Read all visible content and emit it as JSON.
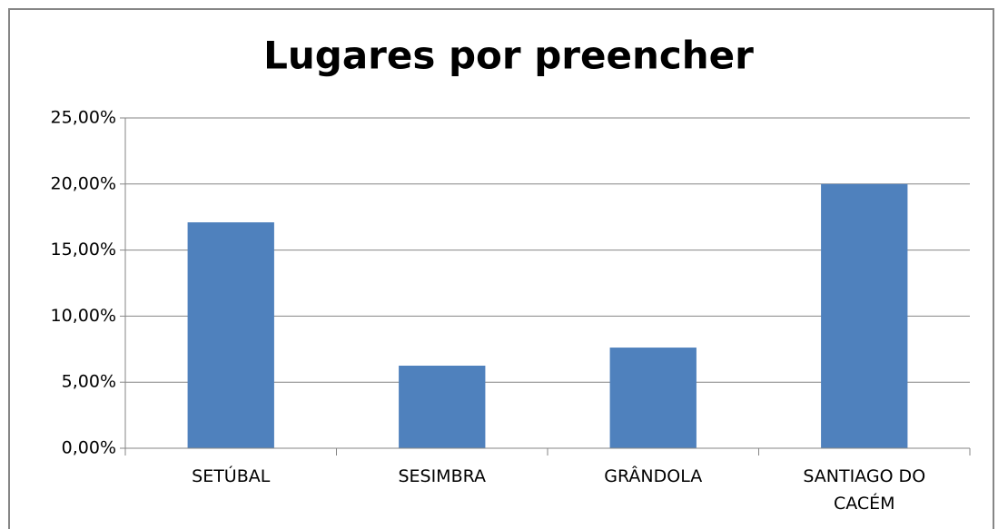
{
  "chart_data": {
    "type": "bar",
    "title": "Lugares por preencher",
    "categories": [
      "SETÚBAL",
      "SESIMBRA",
      "GRÂNDOLA",
      "SANTIAGO DO CACÉM"
    ],
    "values": [
      17.1,
      6.25,
      7.62,
      20
    ],
    "color": "#4f81bd",
    "ylim": [
      0,
      25
    ],
    "yticks": [
      {
        "value": 0,
        "label": "0,00%"
      },
      {
        "value": 5,
        "label": "5,00%"
      },
      {
        "value": 10,
        "label": "10,00%"
      },
      {
        "value": 15,
        "label": "15,00%"
      },
      {
        "value": 20,
        "label": "20,00%"
      },
      {
        "value": 25,
        "label": "25,00%"
      }
    ],
    "grid": true
  }
}
